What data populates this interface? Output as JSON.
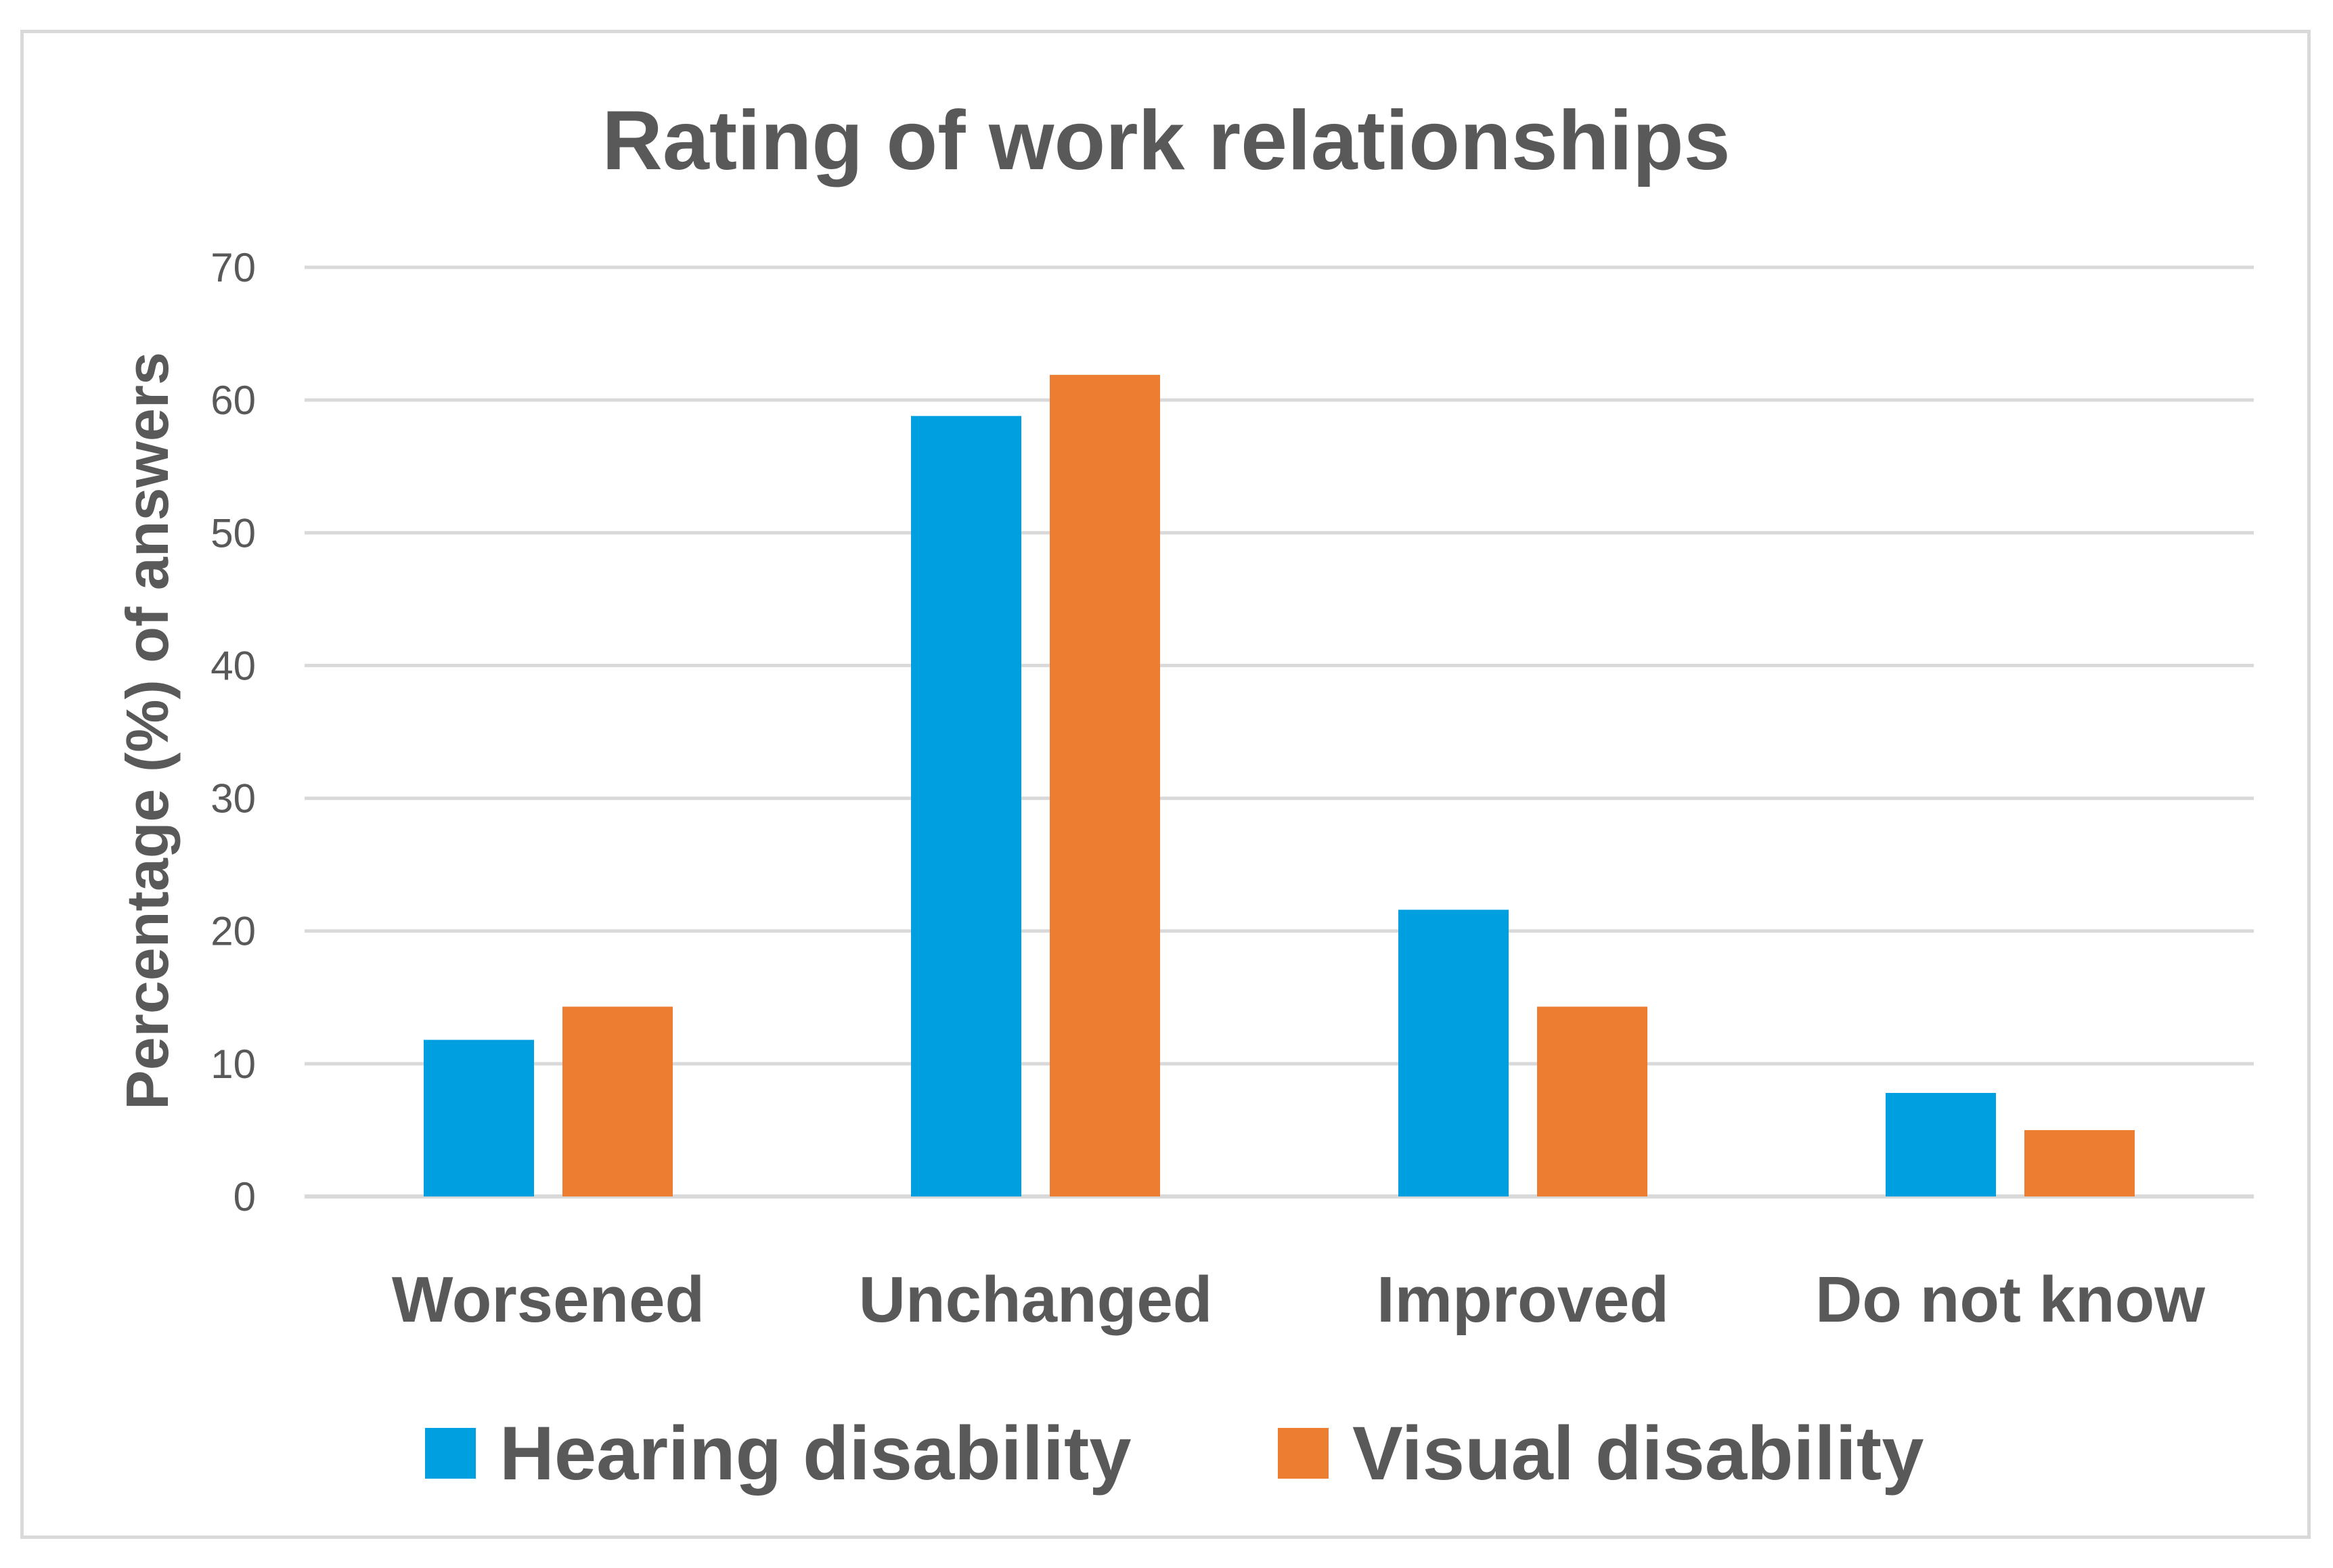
{
  "chart_data": {
    "type": "bar",
    "title": "Rating of work relationships",
    "xlabel": "",
    "ylabel": "Percentage (%) of answers",
    "ylim": [
      0,
      70
    ],
    "yticks": [
      "0",
      "10",
      "20",
      "30",
      "40",
      "50",
      "60",
      "70"
    ],
    "grid": true,
    "legend_position": "bottom",
    "categories": [
      "Worsened",
      "Unchanged",
      "Improved",
      "Do not know"
    ],
    "series": [
      {
        "name": "Hearing disability",
        "color": "#00a0e0",
        "values": [
          11.8,
          58.8,
          21.6,
          7.8
        ]
      },
      {
        "name": "Visual disability",
        "color": "#ed7d31",
        "values": [
          14.3,
          61.9,
          14.3,
          5.0
        ]
      }
    ]
  }
}
